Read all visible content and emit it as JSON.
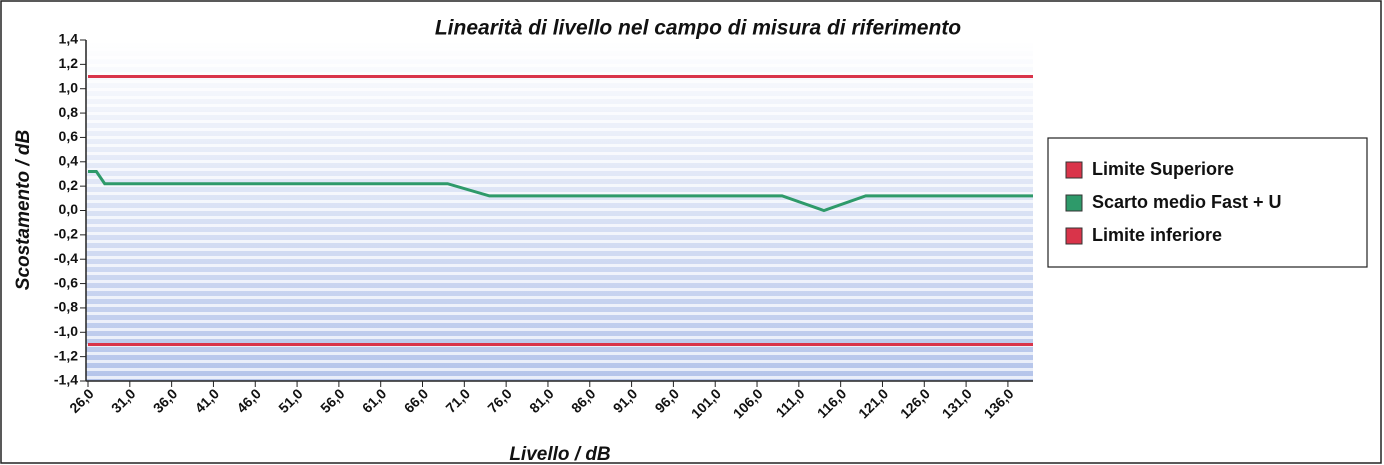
{
  "chart_data": {
    "type": "line",
    "title": "Linearità di livello nel campo di misura di riferimento",
    "xlabel": "Livello / dB",
    "ylabel": "Scostamento / dB",
    "x": [
      26,
      27,
      28,
      69,
      74,
      109,
      114,
      119,
      139
    ],
    "series": [
      {
        "name": "Limite Superiore",
        "color": "#d9344a",
        "values": [
          1.1,
          1.1,
          1.1,
          1.1,
          1.1,
          1.1,
          1.1,
          1.1,
          1.1
        ]
      },
      {
        "name": "Scarto medio Fast + U",
        "color": "#2e9a6a",
        "values": [
          0.32,
          0.32,
          0.22,
          0.22,
          0.12,
          0.12,
          0.0,
          0.12,
          0.12
        ]
      },
      {
        "name": "Limite inferiore",
        "color": "#d9344a",
        "values": [
          -1.1,
          -1.1,
          -1.1,
          -1.1,
          -1.1,
          -1.1,
          -1.1,
          -1.1,
          -1.1
        ]
      }
    ],
    "xlim": [
      26,
      139
    ],
    "ylim": [
      -1.4,
      1.4
    ],
    "xticks": [
      {
        "value": 26,
        "label": "26,0"
      },
      {
        "value": 31,
        "label": "31,0"
      },
      {
        "value": 36,
        "label": "36,0"
      },
      {
        "value": 41,
        "label": "41,0"
      },
      {
        "value": 46,
        "label": "46,0"
      },
      {
        "value": 51,
        "label": "51,0"
      },
      {
        "value": 56,
        "label": "56,0"
      },
      {
        "value": 61,
        "label": "61,0"
      },
      {
        "value": 66,
        "label": "66,0"
      },
      {
        "value": 71,
        "label": "71,0"
      },
      {
        "value": 76,
        "label": "76,0"
      },
      {
        "value": 81,
        "label": "81,0"
      },
      {
        "value": 86,
        "label": "86,0"
      },
      {
        "value": 91,
        "label": "91,0"
      },
      {
        "value": 96,
        "label": "96,0"
      },
      {
        "value": 101,
        "label": "101,0"
      },
      {
        "value": 106,
        "label": "106,0"
      },
      {
        "value": 111,
        "label": "111,0"
      },
      {
        "value": 116,
        "label": "116,0"
      },
      {
        "value": 121,
        "label": "121,0"
      },
      {
        "value": 126,
        "label": "126,0"
      },
      {
        "value": 131,
        "label": "131,0"
      },
      {
        "value": 136,
        "label": "136,0"
      }
    ],
    "yticks": [
      {
        "value": 1.4,
        "label": "1,4"
      },
      {
        "value": 1.2,
        "label": "1,2"
      },
      {
        "value": 1.0,
        "label": "1,0"
      },
      {
        "value": 0.8,
        "label": "0,8"
      },
      {
        "value": 0.6,
        "label": "0,6"
      },
      {
        "value": 0.4,
        "label": "0,4"
      },
      {
        "value": 0.2,
        "label": "0,2"
      },
      {
        "value": 0,
        "label": "0,0"
      },
      {
        "value": -0.2,
        "label": "-0,2"
      },
      {
        "value": -0.4,
        "label": "-0,4"
      },
      {
        "value": -0.6,
        "label": "-0,6"
      },
      {
        "value": -0.8,
        "label": "-0,8"
      },
      {
        "value": -1.0,
        "label": "-1,0"
      },
      {
        "value": -1.2,
        "label": "-1,2"
      },
      {
        "value": -1.4,
        "label": "-1,4"
      }
    ],
    "legend": "right"
  }
}
